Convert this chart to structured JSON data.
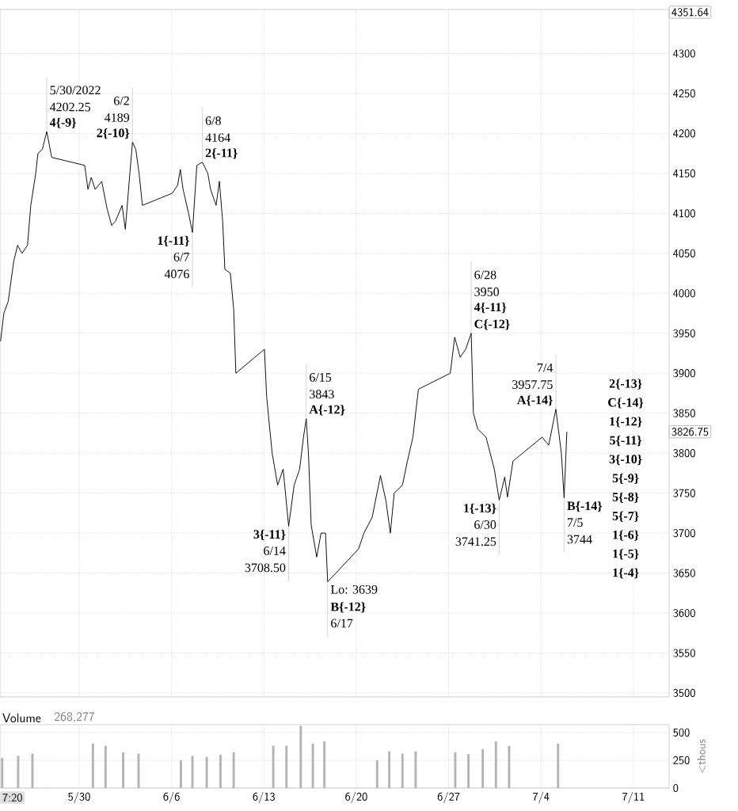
{
  "chart_data": [
    {
      "type": "line",
      "xlim": [
        "2022-05-24T00:00",
        "2022-07-13T17:00"
      ],
      "ylim": [
        3495,
        4355
      ],
      "grid": true,
      "tick_labels": "y",
      "xticks": [
        {
          "value": "2022-05-30",
          "label": null
        },
        {
          "value": "2022-06-06",
          "label": null
        },
        {
          "value": "2022-06-13",
          "label": null
        },
        {
          "value": "2022-06-20",
          "label": null
        },
        {
          "value": "2022-06-27",
          "label": null
        },
        {
          "value": "2022-07-04",
          "label": null
        },
        {
          "value": "2022-07-11",
          "label": null
        }
      ],
      "yticks": [
        3500,
        3550,
        3600,
        3650,
        3700,
        3750,
        3800,
        3850,
        3900,
        3950,
        4000,
        4050,
        4100,
        4150,
        4200,
        4250,
        4300,
        {
          "value": 3826.75,
          "label": "3826.75"
        },
        {
          "value": 4351.64,
          "label": "4351.64"
        }
      ],
      "series": [
        {
          "color": "#000000",
          "x": [
            "2022-05-24T01:00",
            "2022-05-24T07:00",
            "2022-05-24T15:00",
            "2022-05-25T01:00",
            "2022-05-25T08:00",
            "2022-05-25T16:00",
            "2022-05-26T02:00",
            "2022-05-26T08:00",
            "2022-05-26T17:00",
            "2022-05-26T21:00",
            "2022-05-27T05:00",
            "2022-05-27T13:00",
            "2022-05-27T22:00",
            "2022-05-30T10:00",
            "2022-05-30T16:00",
            "2022-05-30T22:00",
            "2022-05-31T05:00",
            "2022-05-31T17:00",
            "2022-06-01T03:00",
            "2022-06-01T11:00",
            "2022-06-01T18:00",
            "2022-06-02T06:00",
            "2022-06-02T12:00",
            "2022-06-02T19:00",
            "2022-06-03T01:00",
            "2022-06-03T07:00",
            "2022-06-03T13:00",
            "2022-06-03T19:00",
            "2022-06-06T01:00",
            "2022-06-06T11:00",
            "2022-06-06T16:00",
            "2022-06-06T21:00",
            "2022-06-07T07:00",
            "2022-06-07T14:00",
            "2022-06-07T22:00",
            "2022-06-08T08:00",
            "2022-06-08T18:00",
            "2022-06-08T23:00",
            "2022-06-09T09:00",
            "2022-06-09T15:00",
            "2022-06-09T21:00",
            "2022-06-10T01:00",
            "2022-06-10T11:00",
            "2022-06-10T17:00",
            "2022-06-10T21:00",
            "2022-06-13T01:00",
            "2022-06-13T05:00",
            "2022-06-13T15:00",
            "2022-06-14T01:00",
            "2022-06-14T11:00",
            "2022-06-14T21:00",
            "2022-06-15T07:00",
            "2022-06-15T17:00",
            "2022-06-16T00:00",
            "2022-06-16T05:00",
            "2022-06-16T09:00",
            "2022-06-16T14:00",
            "2022-06-17T00:00",
            "2022-06-17T08:00",
            "2022-06-17T16:00",
            "2022-06-17T20:00",
            "2022-06-20T04:00",
            "2022-06-20T14:00",
            "2022-06-21T05:00",
            "2022-06-21T20:00",
            "2022-06-22T06:00",
            "2022-06-22T14:00",
            "2022-06-22T21:00",
            "2022-06-23T12:00",
            "2022-06-23T21:00",
            "2022-06-24T07:00",
            "2022-06-24T17:00",
            "2022-06-27T03:00",
            "2022-06-27T11:00",
            "2022-06-27T21:00",
            "2022-06-28T07:00",
            "2022-06-28T17:00",
            "2022-06-28T21:00",
            "2022-06-29T05:00",
            "2022-06-29T20:00",
            "2022-06-30T11:00",
            "2022-06-30T20:00",
            "2022-07-01T06:00",
            "2022-07-01T11:00",
            "2022-07-01T21:00",
            "2022-07-04T02:00",
            "2022-07-04T14:00",
            "2022-07-05T03:00",
            "2022-07-05T13:00",
            "2022-07-05T18:00",
            "2022-07-05T23:00"
          ],
          "values": [
            3940,
            3975,
            3990,
            4040,
            4060,
            4050,
            4060,
            4110,
            4150,
            4175,
            4180,
            4202.25,
            4170,
            4160,
            4130,
            4145,
            4130,
            4140,
            4105,
            4085,
            4090,
            4110,
            4080,
            4140,
            4189,
            4180,
            4150,
            4110,
            4125,
            4135,
            4155,
            4130,
            4100,
            4076,
            4160,
            4164,
            4150,
            4130,
            4110,
            4140,
            4090,
            4030,
            4025,
            3980,
            3900,
            3930,
            3870,
            3800,
            3760,
            3780,
            3708.5,
            3760,
            3780,
            3820,
            3843,
            3800,
            3710,
            3670,
            3700,
            3700,
            3639,
            3680,
            3700,
            3720,
            3772,
            3740,
            3700,
            3750,
            3760,
            3790,
            3820,
            3880,
            3900,
            3945,
            3920,
            3930,
            3950,
            3850,
            3830,
            3820,
            3780,
            3741.25,
            3770,
            3745,
            3790,
            3820,
            3810,
            3855,
            3800,
            3744,
            3826.75
          ]
        }
      ],
      "annotations": [
        {
          "text": "5/30/2022",
          "x": "2022-05-27T13:00",
          "y": 4202.25
        },
        {
          "text": "4202.25",
          "x": "2022-05-27T13:00",
          "y": 4202.25
        },
        {
          "text": "**4{-9}**",
          "x": "2022-05-27T13:00",
          "y": 4202.25
        },
        {
          "text": "6/2",
          "x": "2022-06-03T01:00",
          "y": 4189
        },
        {
          "text": "4189",
          "x": "2022-06-03T01:00",
          "y": 4189
        },
        {
          "text": "**2{-10}**",
          "x": "2022-06-03T01:00",
          "y": 4189
        },
        {
          "text": "6/8",
          "x": "2022-06-08T08:00",
          "y": 4164
        },
        {
          "text": "4164",
          "x": "2022-06-08T08:00",
          "y": 4164
        },
        {
          "text": "**2{-11}**",
          "x": "2022-06-08T08:00",
          "y": 4164
        },
        {
          "text": "**1{-11}**",
          "x": "2022-06-07T14:00",
          "y": 4076
        },
        {
          "text": "6/7",
          "x": "2022-06-07T14:00",
          "y": 4076
        },
        {
          "text": "4076",
          "x": "2022-06-07T14:00",
          "y": 4076
        },
        {
          "text": "6/28",
          "x": "2022-06-28T17:00",
          "y": 3950
        },
        {
          "text": "3950",
          "x": "2022-06-28T17:00",
          "y": 3950
        },
        {
          "text": "**4{-11}**",
          "x": "2022-06-28T17:00",
          "y": 3950
        },
        {
          "text": "**C{-12}**",
          "x": "2022-06-28T17:00",
          "y": 3950
        },
        {
          "text": "6/15",
          "x": "2022-06-16T05:00",
          "y": 3843
        },
        {
          "text": "3843",
          "x": "2022-06-16T05:00",
          "y": 3843
        },
        {
          "text": "**A{-12}**",
          "x": "2022-06-16T05:00",
          "y": 3843
        },
        {
          "text": "7/4",
          "x": "2022-07-05T03:00",
          "y": 3855
        },
        {
          "text": "3957.75",
          "x": "2022-07-05T03:00",
          "y": 3855
        },
        {
          "text": "**A{-14}**",
          "x": "2022-07-05T03:00",
          "y": 3855
        },
        {
          "text": "**B{-14}**",
          "x": "2022-07-05T18:00",
          "y": 3744
        },
        {
          "text": "7/5",
          "x": "2022-07-05T18:00",
          "y": 3744
        },
        {
          "text": "3744",
          "x": "2022-07-05T18:00",
          "y": 3744
        },
        {
          "text": "**1{-13}**",
          "x": "2022-06-30T20:00",
          "y": 3741.25
        },
        {
          "text": "6/30",
          "x": "2022-06-30T20:00",
          "y": 3741.25
        },
        {
          "text": "3741.25",
          "x": "2022-06-30T20:00",
          "y": 3741.25
        },
        {
          "text": "**3{-11}**",
          "x": "2022-06-14T21:00",
          "y": 3708.5
        },
        {
          "text": "6/14",
          "x": "2022-06-14T21:00",
          "y": 3708.5
        },
        {
          "text": "3708.50",
          "x": "2022-06-14T21:00",
          "y": 3708.5
        },
        {
          "text": "Lo: 3639",
          "x": "2022-06-17T20:00",
          "y": 3639
        },
        {
          "text": "**B{-12}**",
          "x": "2022-06-17T20:00",
          "y": 3639
        },
        {
          "text": "6/17",
          "x": "2022-06-17T20:00",
          "y": 3639
        },
        "**2{-13}**",
        "**C{-14}**",
        "**1{-12}**",
        "**5{-11}**",
        "**3{-10}**",
        "**5{-9}**",
        "**5{-8}**",
        "**5{-7}**",
        "**1{-6}**",
        "**1{-5}**",
        "**1{-4}**"
      ]
    },
    {
      "type": "bar",
      "title": "Volume",
      "subtitle": "268,277",
      "ylabel": "<thous",
      "xlim": [
        "2022-05-24T00:00",
        "2022-07-13T17:00"
      ],
      "ylim": [
        0,
        570
      ],
      "grid": true,
      "xticks": [
        {
          "value": "2022-05-30",
          "label": "5/30"
        },
        {
          "value": "2022-06-06",
          "label": "6/6"
        },
        {
          "value": "2022-06-13",
          "label": "6/13"
        },
        {
          "value": "2022-06-20",
          "label": "6/20"
        },
        {
          "value": "2022-06-27",
          "label": "6/27"
        },
        {
          "value": "2022-07-04",
          "label": "7/4"
        },
        {
          "value": "2022-07-11",
          "label": "7/11"
        }
      ],
      "yticks": [
        0,
        250,
        500
      ],
      "series": [
        {
          "color": "#b4b4b4",
          "x": [
            "2022-05-24T04:00",
            "2022-05-25T09:00",
            "2022-05-26T11:00",
            "2022-05-31T01:00",
            "2022-06-01T00:00",
            "2022-06-02T08:00",
            "2022-06-03T12:00",
            "2022-06-06T17:00",
            "2022-06-07T14:00",
            "2022-06-08T16:00",
            "2022-06-09T17:00",
            "2022-06-10T17:00",
            "2022-06-13T17:00",
            "2022-06-14T17:00",
            "2022-06-15T19:00",
            "2022-06-16T17:00",
            "2022-06-17T14:00",
            "2022-06-21T14:00",
            "2022-06-22T12:00",
            "2022-06-23T12:00",
            "2022-06-24T12:00",
            "2022-06-27T12:00",
            "2022-06-28T12:00",
            "2022-06-29T14:00",
            "2022-06-30T14:00",
            "2022-07-01T14:00",
            "2022-07-05T07:00"
          ],
          "values": [
            270,
            290,
            310,
            400,
            380,
            320,
            310,
            250,
            290,
            280,
            300,
            320,
            380,
            380,
            560,
            400,
            420,
            250,
            330,
            310,
            330,
            320,
            305,
            350,
            420,
            380,
            400
          ]
        }
      ],
      "annotations": [
        "7:20"
      ]
    }
  ]
}
